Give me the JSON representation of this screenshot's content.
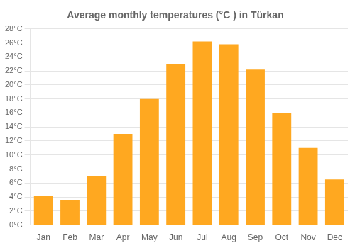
{
  "chart_data": {
    "type": "bar",
    "title": "Average monthly temperatures (°C ) in Türkan",
    "categories": [
      "Jan",
      "Feb",
      "Mar",
      "Apr",
      "May",
      "Jun",
      "Jul",
      "Aug",
      "Sep",
      "Oct",
      "Nov",
      "Dec"
    ],
    "values": [
      4.2,
      3.6,
      7.0,
      13.0,
      18.0,
      23.0,
      26.2,
      25.8,
      22.2,
      16.0,
      11.0,
      6.5
    ],
    "color": "#FFA820",
    "ylim": [
      0,
      28
    ],
    "yticks": [
      {
        "value": 0,
        "label": "0°C"
      },
      {
        "value": 2,
        "label": "2°C"
      },
      {
        "value": 4,
        "label": "4°C"
      },
      {
        "value": 6,
        "label": "6°C"
      },
      {
        "value": 8,
        "label": "8°C"
      },
      {
        "value": 10,
        "label": "10°C"
      },
      {
        "value": 12,
        "label": "12°C"
      },
      {
        "value": 14,
        "label": "14°C"
      },
      {
        "value": 16,
        "label": "16°C"
      },
      {
        "value": 18,
        "label": "18°C"
      },
      {
        "value": 20,
        "label": "20°C"
      },
      {
        "value": 22,
        "label": "22°C"
      },
      {
        "value": 24,
        "label": "24°C"
      },
      {
        "value": 26,
        "label": "26°C"
      },
      {
        "value": 28,
        "label": "28°C"
      }
    ],
    "grid": true
  }
}
